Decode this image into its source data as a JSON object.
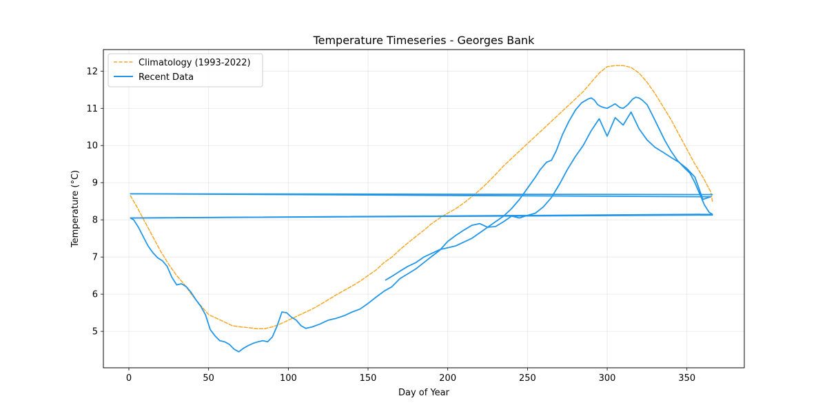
{
  "chart_data": {
    "type": "line",
    "title": "Temperature Timeseries - Georges Bank",
    "xlabel": "Day of Year",
    "ylabel": "Temperature (°C)",
    "xlim": [
      -16,
      386
    ],
    "ylim": [
      4.02,
      12.58
    ],
    "xticks": [
      0,
      50,
      100,
      150,
      200,
      250,
      300,
      350
    ],
    "yticks": [
      5,
      6,
      7,
      8,
      9,
      10,
      11,
      12
    ],
    "grid": true,
    "legend_position": "top-left",
    "series": [
      {
        "name": "Climatology (1993-2022)",
        "style": "dashed",
        "color": "#f5a623",
        "x": [
          1,
          5,
          10,
          15,
          20,
          25,
          30,
          35,
          40,
          45,
          50,
          55,
          60,
          65,
          70,
          75,
          80,
          85,
          90,
          95,
          100,
          105,
          110,
          115,
          120,
          125,
          130,
          135,
          140,
          145,
          150,
          155,
          160,
          165,
          170,
          175,
          180,
          185,
          190,
          195,
          200,
          205,
          210,
          215,
          220,
          225,
          230,
          235,
          240,
          245,
          250,
          255,
          260,
          265,
          270,
          275,
          280,
          285,
          290,
          295,
          300,
          305,
          310,
          315,
          320,
          325,
          330,
          335,
          340,
          345,
          350,
          355,
          360,
          365,
          366
        ],
        "y": [
          8.65,
          8.35,
          7.95,
          7.55,
          7.15,
          6.8,
          6.5,
          6.25,
          5.95,
          5.7,
          5.45,
          5.35,
          5.25,
          5.15,
          5.12,
          5.1,
          5.07,
          5.07,
          5.12,
          5.2,
          5.3,
          5.4,
          5.5,
          5.6,
          5.72,
          5.85,
          5.98,
          6.1,
          6.22,
          6.35,
          6.5,
          6.65,
          6.85,
          7.0,
          7.2,
          7.38,
          7.55,
          7.72,
          7.9,
          8.05,
          8.18,
          8.3,
          8.45,
          8.62,
          8.8,
          9.0,
          9.22,
          9.45,
          9.65,
          9.85,
          10.05,
          10.25,
          10.45,
          10.65,
          10.85,
          11.05,
          11.25,
          11.45,
          11.7,
          11.95,
          12.12,
          12.15,
          12.15,
          12.1,
          11.95,
          11.7,
          11.4,
          11.05,
          10.7,
          10.3,
          9.9,
          9.5,
          9.15,
          8.75,
          8.5
        ]
      },
      {
        "name": "Recent Data",
        "style": "solid",
        "color": "#2196e8",
        "x": [
          161,
          165,
          170,
          175,
          180,
          185,
          190,
          195,
          200,
          205,
          210,
          215,
          220,
          225,
          230,
          235,
          240,
          245,
          250,
          255,
          258,
          262,
          265,
          268,
          272,
          276,
          280,
          284,
          288,
          290,
          292,
          294,
          296,
          298,
          300,
          302,
          305,
          308,
          310,
          313,
          316,
          318,
          320,
          322,
          325,
          328,
          332,
          336,
          340,
          344,
          348,
          352,
          355,
          358,
          361,
          364,
          366,
          1,
          3,
          6,
          9,
          12,
          15,
          18,
          21,
          24,
          27,
          30,
          33,
          36,
          39,
          42,
          45,
          48,
          51,
          54,
          57,
          60,
          63,
          66,
          69,
          72,
          75,
          78,
          81,
          84,
          87,
          90,
          93,
          96,
          99,
          102,
          105,
          108,
          111,
          115,
          120,
          125,
          130,
          135,
          140,
          145,
          150,
          155,
          160,
          165,
          170,
          175,
          180,
          185,
          190,
          195,
          200,
          205,
          210,
          215,
          220,
          225,
          230,
          235,
          240,
          245,
          250,
          255,
          260,
          265,
          270,
          275,
          280,
          285,
          290,
          295,
          300,
          305,
          310,
          315,
          320,
          325,
          330,
          335,
          340,
          345,
          350,
          355,
          360,
          365,
          1
        ],
        "y": [
          6.38,
          6.48,
          6.62,
          6.75,
          6.85,
          7.0,
          7.1,
          7.2,
          7.25,
          7.3,
          7.4,
          7.5,
          7.65,
          7.8,
          7.95,
          8.1,
          8.3,
          8.55,
          8.85,
          9.15,
          9.35,
          9.55,
          9.6,
          9.85,
          10.3,
          10.65,
          10.95,
          11.15,
          11.25,
          11.28,
          11.22,
          11.1,
          11.05,
          11.02,
          11.0,
          11.05,
          11.12,
          11.02,
          11.0,
          11.1,
          11.25,
          11.3,
          11.28,
          11.22,
          11.1,
          10.85,
          10.5,
          10.15,
          9.85,
          9.6,
          9.42,
          9.25,
          9.0,
          8.7,
          8.4,
          8.2,
          8.15,
          8.05,
          8.0,
          7.8,
          7.55,
          7.3,
          7.12,
          6.98,
          6.9,
          6.75,
          6.45,
          6.25,
          6.28,
          6.2,
          6.05,
          5.85,
          5.68,
          5.45,
          5.05,
          4.88,
          4.75,
          4.72,
          4.65,
          4.52,
          4.45,
          4.55,
          4.62,
          4.68,
          4.72,
          4.75,
          4.72,
          4.85,
          5.15,
          5.52,
          5.5,
          5.38,
          5.3,
          5.15,
          5.08,
          5.12,
          5.2,
          5.3,
          5.35,
          5.42,
          5.52,
          5.6,
          5.75,
          5.92,
          6.08,
          6.2,
          6.42,
          6.55,
          6.68,
          6.85,
          7.02,
          7.18,
          7.42,
          7.58,
          7.72,
          7.85,
          7.9,
          7.8,
          7.82,
          7.95,
          8.1,
          8.05,
          8.12,
          8.18,
          8.35,
          8.6,
          8.95,
          9.35,
          9.7,
          10.0,
          10.4,
          10.72,
          10.25,
          10.75,
          10.55,
          10.9,
          10.45,
          10.15,
          9.95,
          9.82,
          9.68,
          9.55,
          9.38,
          9.15,
          8.55,
          8.62,
          8.7
        ]
      },
      {
        "name": "",
        "style": "solid",
        "color": "#2196e8",
        "x": [
          366,
          1
        ],
        "y": [
          8.68,
          8.7
        ]
      },
      {
        "name": "",
        "style": "solid",
        "color": "#2196e8",
        "x": [
          1,
          366
        ],
        "y": [
          8.05,
          8.13
        ]
      }
    ]
  }
}
